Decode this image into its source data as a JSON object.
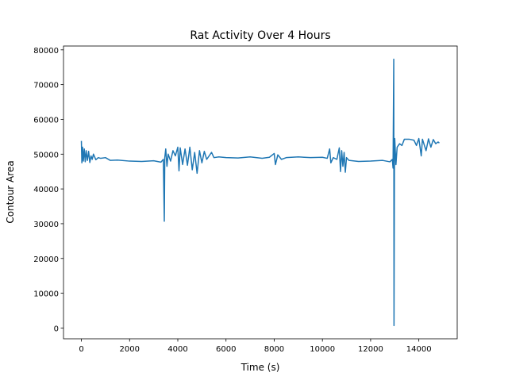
{
  "chart_data": {
    "type": "line",
    "title": "Rat Activity Over 4 Hours",
    "x_label": "Time (s)",
    "y_label": "Contour Area",
    "color": "#1f77b4",
    "x": [
      0,
      20,
      50,
      80,
      120,
      160,
      200,
      250,
      300,
      350,
      400,
      450,
      500,
      600,
      700,
      800,
      1000,
      1200,
      1500,
      2000,
      2500,
      3000,
      3300,
      3400,
      3440,
      3460,
      3500,
      3550,
      3600,
      3700,
      3800,
      3900,
      4000,
      4050,
      4100,
      4200,
      4300,
      4400,
      4500,
      4600,
      4700,
      4800,
      4900,
      5000,
      5100,
      5200,
      5400,
      5500,
      5700,
      6000,
      6500,
      7000,
      7500,
      7800,
      8000,
      8050,
      8150,
      8300,
      8500,
      9000,
      9500,
      10000,
      10200,
      10300,
      10350,
      10450,
      10600,
      10700,
      10750,
      10800,
      10850,
      10900,
      10950,
      11000,
      11100,
      11500,
      12000,
      12500,
      12800,
      12900,
      12930,
      12960,
      12970,
      12990,
      13000,
      13050,
      13100,
      13200,
      13300,
      13400,
      13600,
      13800,
      13900,
      14000,
      14100,
      14150,
      14300,
      14400,
      14500,
      14600,
      14700,
      14800,
      14850
    ],
    "values": [
      53800,
      47500,
      52000,
      48000,
      51500,
      47800,
      51000,
      48200,
      50800,
      47600,
      49500,
      48500,
      50000,
      48400,
      49000,
      48800,
      49000,
      48200,
      48300,
      48000,
      47900,
      48100,
      47700,
      48500,
      30700,
      49000,
      51500,
      46500,
      50000,
      48000,
      51000,
      49500,
      52000,
      45200,
      51800,
      47000,
      51500,
      46800,
      52000,
      45500,
      50500,
      44500,
      51000,
      47500,
      50800,
      48500,
      50500,
      49000,
      49200,
      49000,
      48900,
      49200,
      48800,
      49100,
      50200,
      47000,
      49800,
      48500,
      49000,
      49200,
      49000,
      49100,
      48800,
      51500,
      47500,
      49000,
      48500,
      51800,
      45000,
      51000,
      46500,
      50500,
      44800,
      49000,
      48200,
      47900,
      48000,
      48200,
      47800,
      48500,
      46000,
      77300,
      700,
      50000,
      54500,
      47000,
      52000,
      53000,
      52500,
      54300,
      54300,
      54000,
      52500,
      54500,
      49500,
      54300,
      51000,
      54400,
      52000,
      54200,
      53000,
      53500,
      53200
    ],
    "xlim": [
      -742,
      15592
    ],
    "ylim": [
      -3100,
      81100
    ],
    "xticks": [
      0,
      2000,
      4000,
      6000,
      8000,
      10000,
      12000,
      14000
    ],
    "yticks": [
      0,
      10000,
      20000,
      30000,
      40000,
      50000,
      60000,
      70000,
      80000
    ]
  }
}
